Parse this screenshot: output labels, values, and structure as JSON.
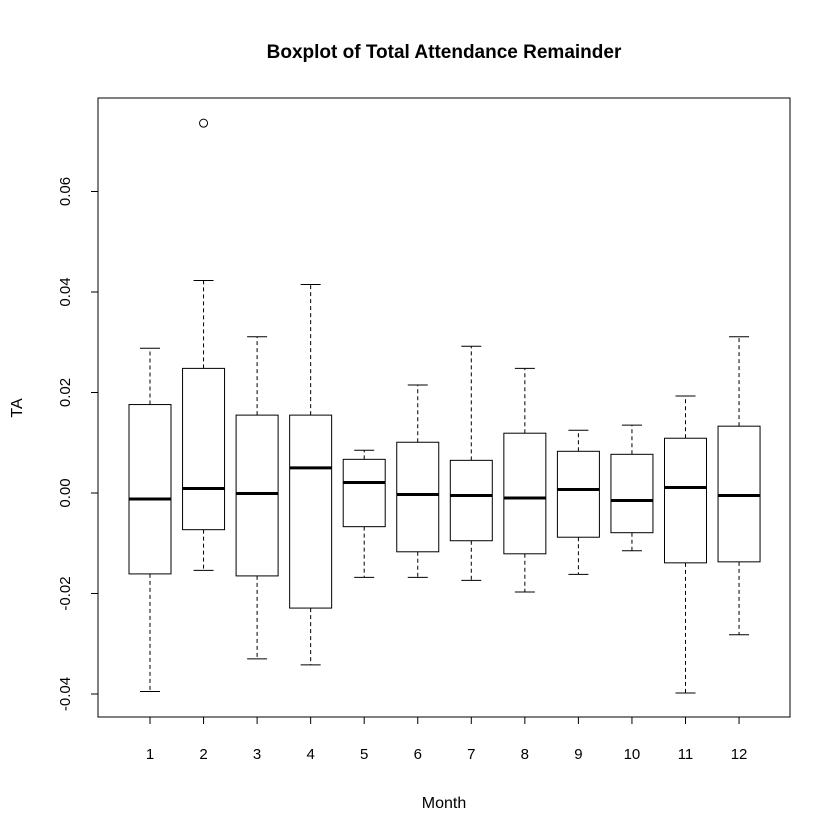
{
  "chart_data": {
    "type": "boxplot",
    "title": "Boxplot of Total Attendance Remainder",
    "xlabel": "Month",
    "ylabel": "TA",
    "ylim": [
      -0.044,
      0.079
    ],
    "yticks": [
      -0.04,
      -0.02,
      0.0,
      0.02,
      0.04,
      0.06
    ],
    "ytick_labels": [
      "-0.04",
      "-0.02",
      "0.00",
      "0.02",
      "0.04",
      "0.06"
    ],
    "categories": [
      "1",
      "2",
      "3",
      "4",
      "5",
      "6",
      "7",
      "8",
      "9",
      "10",
      "11",
      "12"
    ],
    "boxes": [
      {
        "category": "1",
        "whisker_low": -0.0395,
        "q1": -0.0161,
        "median": -0.0012,
        "q3": 0.0176,
        "whisker_high": 0.0288,
        "outliers": []
      },
      {
        "category": "2",
        "whisker_low": -0.0154,
        "q1": -0.0073,
        "median": 0.0009,
        "q3": 0.0248,
        "whisker_high": 0.0423,
        "outliers": [
          0.0736
        ]
      },
      {
        "category": "3",
        "whisker_low": -0.033,
        "q1": -0.0165,
        "median": -0.0001,
        "q3": 0.0155,
        "whisker_high": 0.0311,
        "outliers": []
      },
      {
        "category": "4",
        "whisker_low": -0.0342,
        "q1": -0.0229,
        "median": 0.005,
        "q3": 0.0155,
        "whisker_high": 0.0415,
        "outliers": []
      },
      {
        "category": "5",
        "whisker_low": -0.0168,
        "q1": -0.0067,
        "median": 0.0021,
        "q3": 0.0067,
        "whisker_high": 0.0085,
        "outliers": []
      },
      {
        "category": "6",
        "whisker_low": -0.0168,
        "q1": -0.0117,
        "median": -0.0003,
        "q3": 0.0101,
        "whisker_high": 0.0215,
        "outliers": []
      },
      {
        "category": "7",
        "whisker_low": -0.0174,
        "q1": -0.0095,
        "median": -0.0005,
        "q3": 0.0065,
        "whisker_high": 0.0292,
        "outliers": []
      },
      {
        "category": "8",
        "whisker_low": -0.0197,
        "q1": -0.0121,
        "median": -0.001,
        "q3": 0.0119,
        "whisker_high": 0.0248,
        "outliers": []
      },
      {
        "category": "9",
        "whisker_low": -0.0162,
        "q1": -0.0088,
        "median": 0.0007,
        "q3": 0.0083,
        "whisker_high": 0.0125,
        "outliers": []
      },
      {
        "category": "10",
        "whisker_low": -0.0115,
        "q1": -0.0079,
        "median": -0.0015,
        "q3": 0.0077,
        "whisker_high": 0.0135,
        "outliers": []
      },
      {
        "category": "11",
        "whisker_low": -0.0398,
        "q1": -0.0139,
        "median": 0.0011,
        "q3": 0.0109,
        "whisker_high": 0.0193,
        "outliers": []
      },
      {
        "category": "12",
        "whisker_low": -0.0282,
        "q1": -0.0137,
        "median": -0.0005,
        "q3": 0.0133,
        "whisker_high": 0.0311,
        "outliers": []
      }
    ],
    "grid": false,
    "legend": "none"
  }
}
